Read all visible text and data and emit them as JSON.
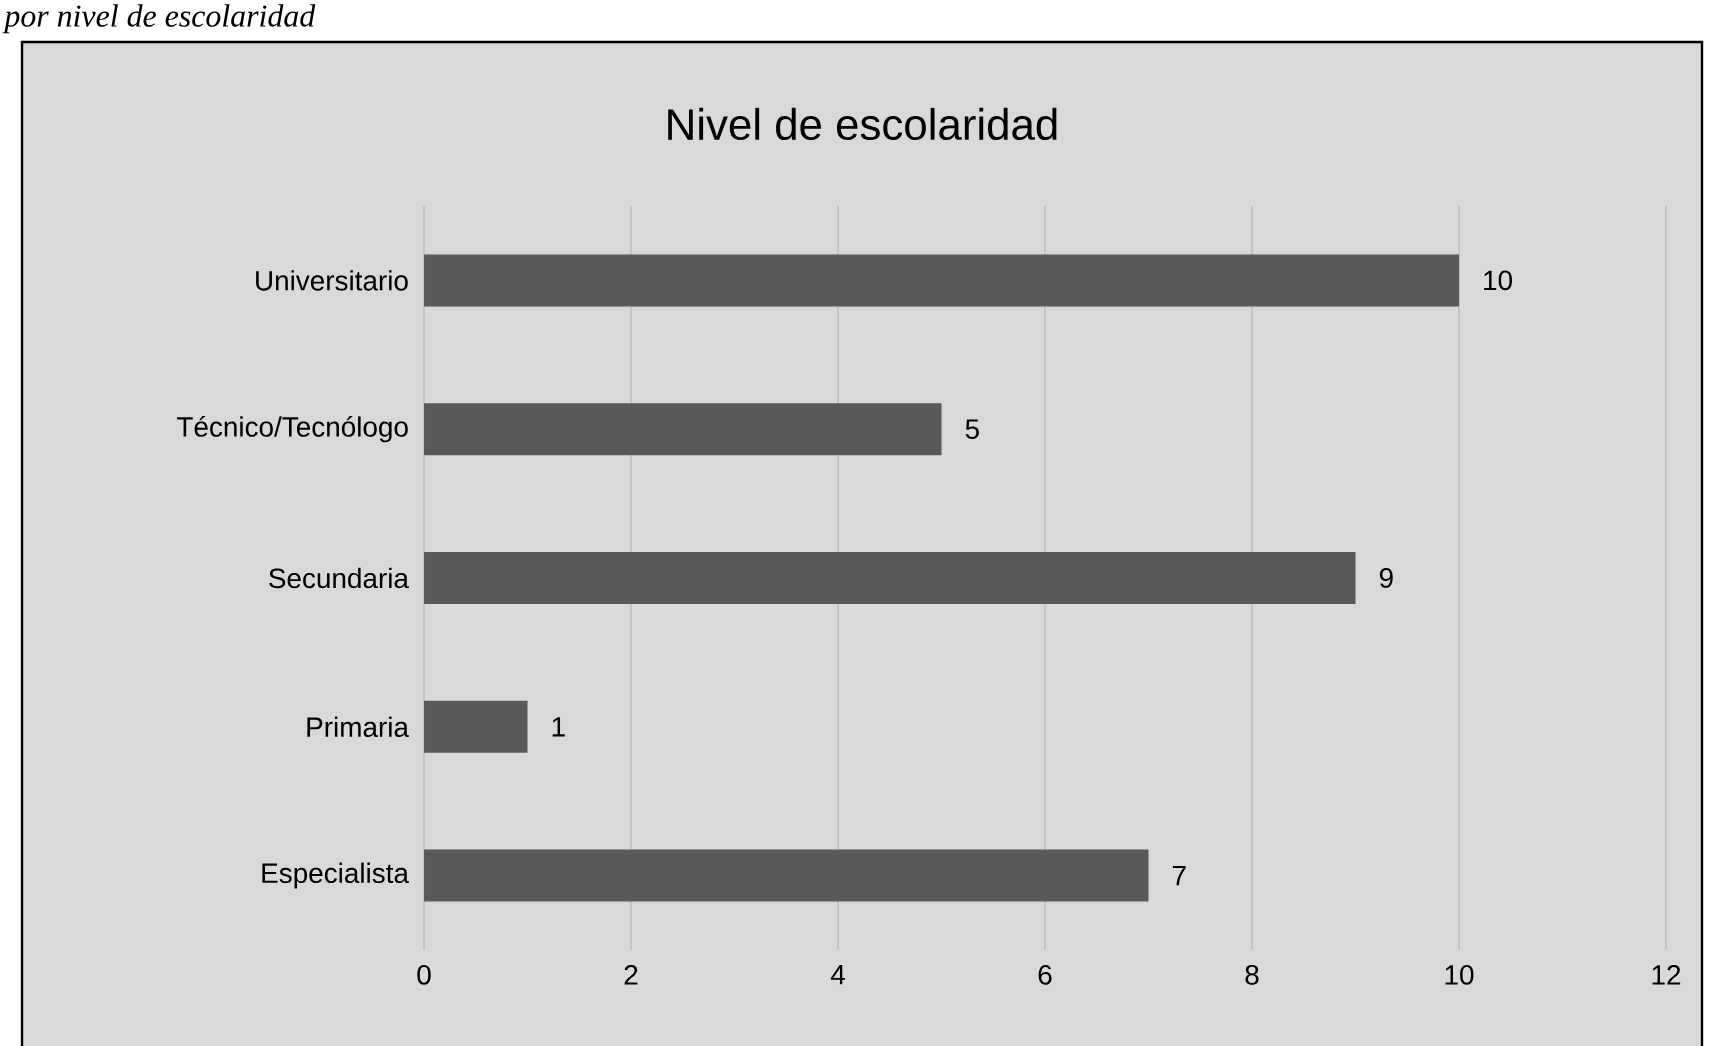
{
  "chart_data": {
    "type": "bar",
    "orientation": "horizontal",
    "title": "Nivel de escolaridad",
    "annotations": [
      "por nivel de escolaridad"
    ],
    "categories": [
      "Universitario",
      "Técnico/Tecnólogo",
      "Secundaria",
      "Primaria",
      "Especialista"
    ],
    "values": [
      10,
      5,
      9,
      1,
      7
    ],
    "color": "#595959",
    "xlim": [
      0,
      12
    ],
    "xticks": [
      0,
      2,
      4,
      6,
      8,
      10,
      12
    ],
    "grid": "x",
    "data_labels": true
  }
}
